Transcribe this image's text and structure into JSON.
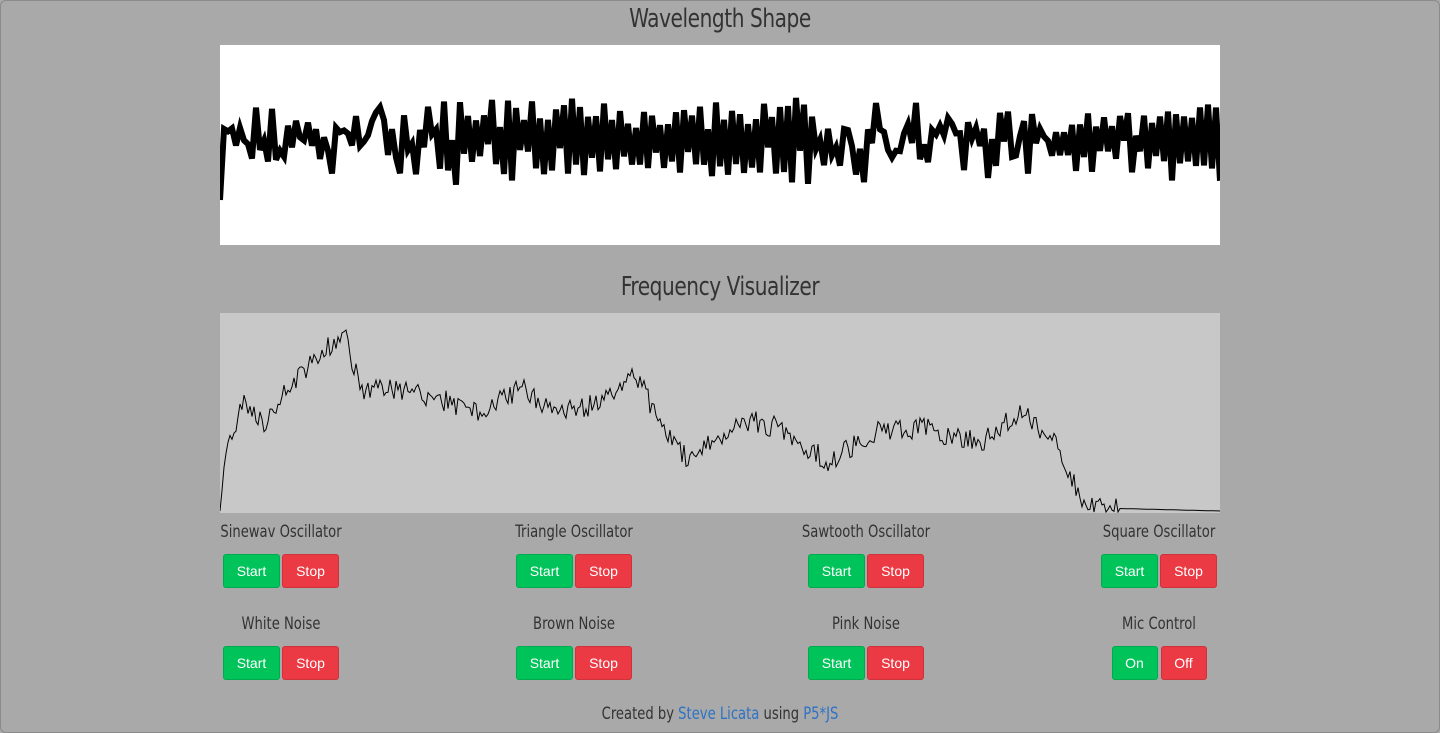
{
  "wavelength": {
    "title": "Wavelength Shape"
  },
  "frequency": {
    "title": "Frequency Visualizer"
  },
  "controls": [
    {
      "label": "Sinewav Oscillator",
      "start": "Start",
      "stop": "Stop"
    },
    {
      "label": "Triangle Oscillator",
      "start": "Start",
      "stop": "Stop"
    },
    {
      "label": "Sawtooth Oscillator",
      "start": "Start",
      "stop": "Stop"
    },
    {
      "label": "Square Oscillator",
      "start": "Start",
      "stop": "Stop"
    },
    {
      "label": "White Noise",
      "start": "Start",
      "stop": "Stop"
    },
    {
      "label": "Brown Noise",
      "start": "Start",
      "stop": "Stop"
    },
    {
      "label": "Pink Noise",
      "start": "Start",
      "stop": "Stop"
    },
    {
      "label": "Mic Control",
      "start": "On",
      "stop": "Off"
    }
  ],
  "footer": {
    "prefix": "Created by",
    "author": "Steve Licata",
    "middle": "using",
    "library": "P5*JS"
  },
  "colors": {
    "start": "#00c35a",
    "stop": "#eb3a44",
    "link": "#2d72c4",
    "page_background": "#a9a9a9"
  }
}
